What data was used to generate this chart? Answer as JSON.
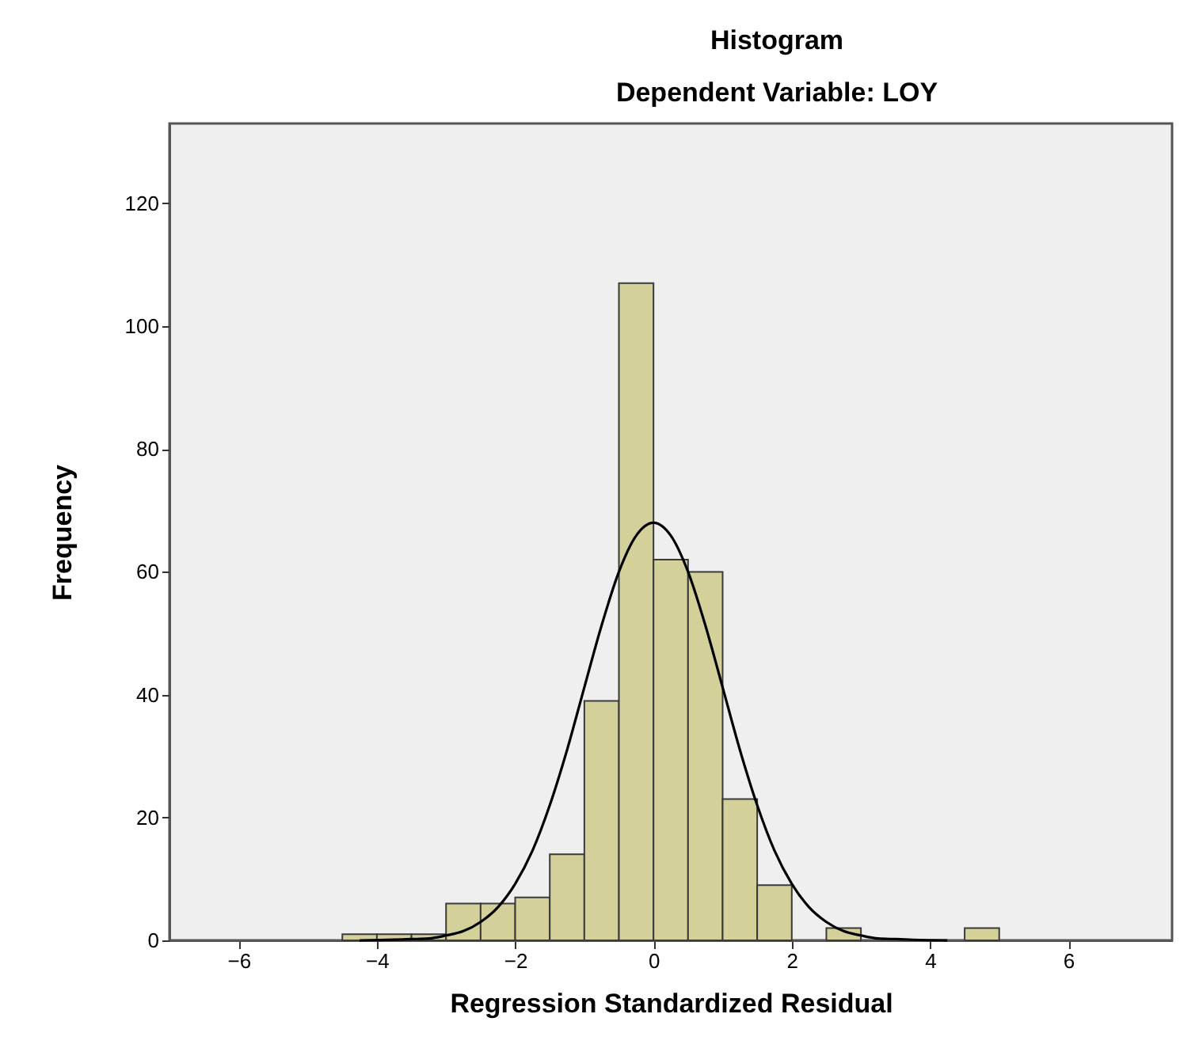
{
  "chart_data": {
    "type": "histogram",
    "title": "Histogram",
    "subtitle": "Dependent Variable: LOY",
    "xlabel": "Regression Standardized Residual",
    "ylabel": "Frequency",
    "bins": [
      -4.5,
      -4,
      -3.5,
      -3,
      -2.5,
      -2,
      -1.5,
      -1,
      -0.5,
      0,
      0.5,
      1,
      1.5,
      2,
      2.5,
      3,
      3.5,
      4,
      4.5,
      5
    ],
    "series": [
      {
        "color": "#d4d09a",
        "values": [
          1,
          1,
          1,
          6,
          6,
          7,
          14,
          39,
          107,
          62,
          60,
          23,
          9,
          0,
          2,
          0,
          0,
          0,
          2
        ]
      },
      {
        "type": "line",
        "color": "#000000",
        "x": [
          -4.25,
          -3.75,
          -3.5,
          -3.25,
          -3,
          -2.75,
          -2.5,
          -2.25,
          -2,
          -1.75,
          -1.5,
          -1.25,
          -1,
          -0.75,
          -0.5,
          -0.25,
          0,
          0.25,
          0.5,
          0.75,
          1,
          1.25,
          1.5,
          1.75,
          2,
          2.25,
          2.5,
          2.75,
          3,
          3.25,
          3.5,
          3.75,
          4.25
        ],
        "values": [
          0,
          0.1,
          0.2,
          0.3,
          0.8,
          1.5,
          3,
          5.4,
          9.2,
          14.6,
          22,
          31,
          41.2,
          51.3,
          60,
          65.9,
          68,
          65.9,
          60,
          51.3,
          41.2,
          31,
          22,
          14.6,
          9.2,
          5.4,
          3,
          1.5,
          0.8,
          0.3,
          0.2,
          0.1,
          0
        ]
      }
    ],
    "xlim": [
      -7,
      7.5
    ],
    "xticks": [
      -6,
      -4,
      -2,
      0,
      2,
      4,
      6
    ],
    "ylim": [
      0,
      133
    ],
    "yticks": [
      0,
      20,
      40,
      60,
      80,
      100,
      120
    ],
    "grid": false
  }
}
